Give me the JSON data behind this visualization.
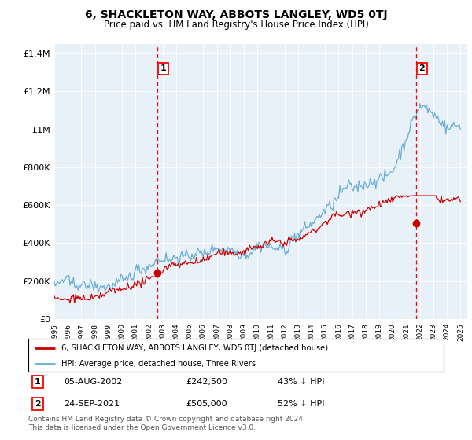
{
  "title": "6, SHACKLETON WAY, ABBOTS LANGLEY, WD5 0TJ",
  "subtitle": "Price paid vs. HM Land Registry's House Price Index (HPI)",
  "bg_color": "#e8f0f8",
  "hpi_color": "#6aaed6",
  "price_color": "#cc0000",
  "marker1_x": 2002.62,
  "marker2_x": 2021.72,
  "marker1_price": 242500,
  "marker2_price": 505000,
  "legend_line1": "6, SHACKLETON WAY, ABBOTS LANGLEY, WD5 0TJ (detached house)",
  "legend_line2": "HPI: Average price, detached house, Three Rivers",
  "footer": "Contains HM Land Registry data © Crown copyright and database right 2024.\nThis data is licensed under the Open Government Licence v3.0.",
  "ylim": [
    0,
    1450000
  ],
  "yticks": [
    0,
    200000,
    400000,
    600000,
    800000,
    1000000,
    1200000,
    1400000
  ],
  "ytick_labels": [
    "£0",
    "£200K",
    "£400K",
    "£600K",
    "£800K",
    "£1M",
    "£1.2M",
    "£1.4M"
  ],
  "xmin": 1995,
  "xmax": 2025.5
}
